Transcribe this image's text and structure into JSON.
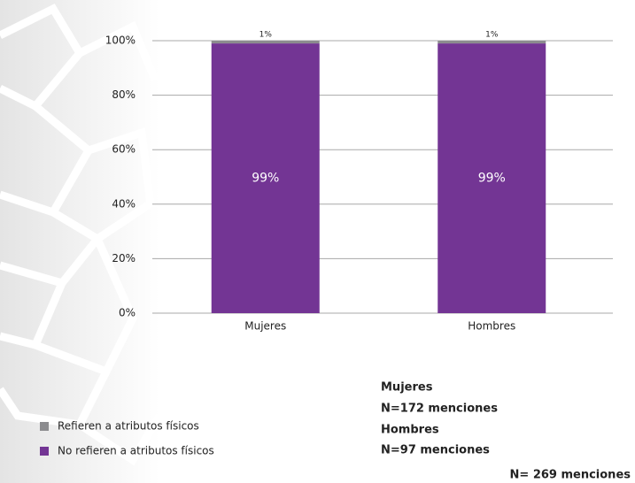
{
  "chart_data": {
    "type": "stacked_bar",
    "categories": [
      "Mujeres",
      "Hombres"
    ],
    "series": [
      {
        "name": "Refieren a atributos físicos",
        "color": "#8c8c8f",
        "values": [
          1,
          1
        ],
        "value_labels": [
          "1%",
          "1%"
        ]
      },
      {
        "name": "No refieren a atributos físicos",
        "color": "#733594",
        "values": [
          99,
          99
        ],
        "value_labels": [
          "99%",
          "99%"
        ]
      }
    ],
    "ylim": [
      0,
      100
    ],
    "yticks": [
      {
        "value": 0,
        "label": "0%"
      },
      {
        "value": 20,
        "label": "20%"
      },
      {
        "value": 40,
        "label": "40%"
      },
      {
        "value": 60,
        "label": "60%"
      },
      {
        "value": 80,
        "label": "80%"
      },
      {
        "value": 100,
        "label": "100%"
      }
    ],
    "grid": true,
    "annotations": [
      "Mujeres",
      "N=172 menciones",
      "Hombres",
      "N=97 menciones",
      "N= 269 menciones"
    ]
  }
}
